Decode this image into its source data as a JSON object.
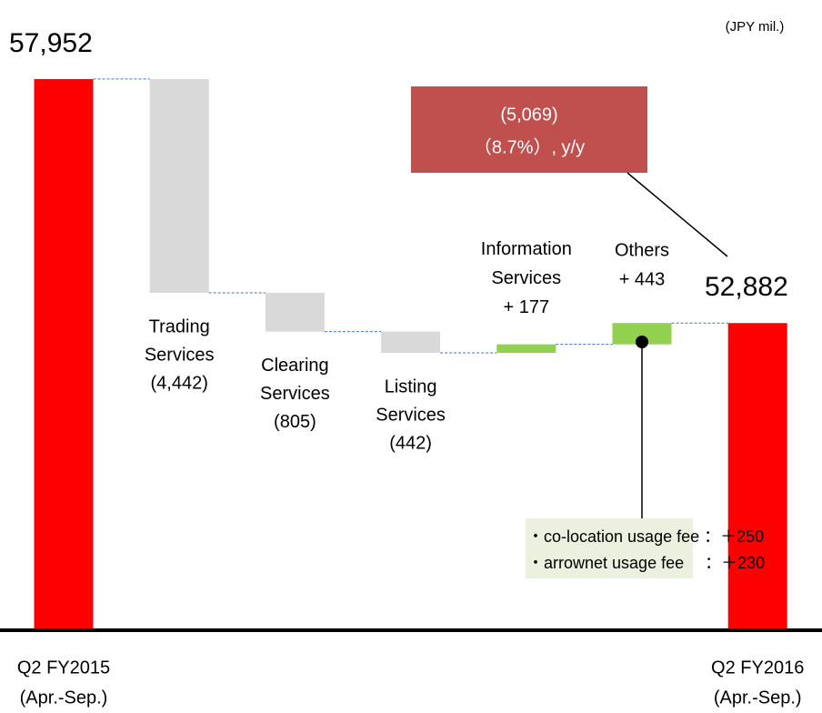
{
  "chart_data": {
    "type": "waterfall",
    "unit": "(JPY mil.)",
    "categories": [
      [
        "Q2 FY2015",
        "(Apr.-Sep.)"
      ],
      [
        "Trading",
        "Services"
      ],
      [
        "Clearing",
        "Services"
      ],
      [
        "Listing",
        "Services"
      ],
      [
        "Information",
        "Services"
      ],
      [
        "Others"
      ],
      [
        "Q2 FY2016",
        "(Apr.-Sep.)"
      ]
    ],
    "measures": [
      "total",
      "relative",
      "relative",
      "relative",
      "relative",
      "relative",
      "total"
    ],
    "values": [
      57952,
      -4442,
      -805,
      -442,
      177,
      443,
      52882
    ],
    "value_labels": [
      "57,952",
      "(4,442)",
      "(805)",
      "(442)",
      "+ 177",
      "+ 443",
      "52,882"
    ],
    "colors": {
      "total": "#ff0000",
      "decrease": "#d9d9d9",
      "increase": "#92d050"
    },
    "ylim": [
      46500,
      59500
    ],
    "callout": [
      "(5,069)",
      "（8.7%）, y/y"
    ],
    "note": [
      "・co-location usage fee ：＋250",
      "・arrownet usage fee　 ：＋230"
    ]
  }
}
